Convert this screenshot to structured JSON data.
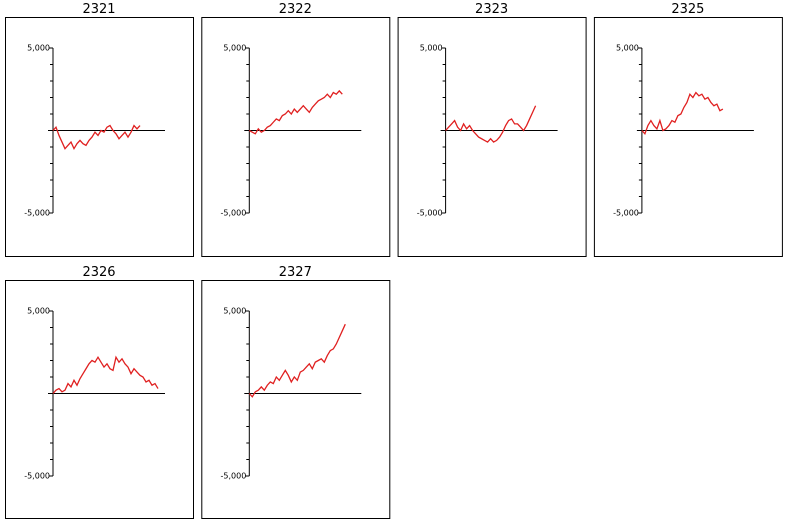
{
  "chart_data": [
    {
      "type": "line",
      "title": "2321",
      "color": "#e02020",
      "ylim": [
        -5000,
        5000
      ],
      "yticks": [
        {
          "value": 5000,
          "label": "5,000"
        },
        {
          "value": -5000,
          "label": "-5,000"
        }
      ],
      "minor_yticks": [
        4000,
        3000,
        2000,
        1000,
        0,
        -1000,
        -2000,
        -3000,
        -4000
      ],
      "values": [
        0,
        200,
        -300,
        -700,
        -1100,
        -900,
        -700,
        -1100,
        -800,
        -600,
        -800,
        -900,
        -600,
        -400,
        -100,
        -300,
        0,
        -100,
        200,
        300,
        0,
        -200,
        -500,
        -300,
        -100,
        -400,
        -100,
        300,
        100,
        300
      ]
    },
    {
      "type": "line",
      "title": "2322",
      "color": "#e02020",
      "ylim": [
        -5000,
        5000
      ],
      "yticks": [
        {
          "value": 5000,
          "label": "5,000"
        },
        {
          "value": -5000,
          "label": "-5,000"
        }
      ],
      "minor_yticks": [
        4000,
        3000,
        2000,
        1000,
        0,
        -1000,
        -2000,
        -3000,
        -4000
      ],
      "values": [
        0,
        -100,
        -200,
        100,
        -100,
        0,
        200,
        300,
        500,
        700,
        600,
        900,
        1000,
        1200,
        1000,
        1300,
        1100,
        1300,
        1500,
        1300,
        1100,
        1400,
        1600,
        1800,
        1900,
        2000,
        2200,
        2000,
        2300,
        2200,
        2400,
        2200
      ]
    },
    {
      "type": "line",
      "title": "2323",
      "color": "#e02020",
      "ylim": [
        -5000,
        5000
      ],
      "yticks": [
        {
          "value": 5000,
          "label": "5,000"
        },
        {
          "value": -5000,
          "label": "-5,000"
        }
      ],
      "minor_yticks": [
        4000,
        3000,
        2000,
        1000,
        0,
        -1000,
        -2000,
        -3000,
        -4000
      ],
      "values": [
        0,
        200,
        400,
        600,
        200,
        0,
        400,
        100,
        300,
        0,
        -200,
        -400,
        -500,
        -600,
        -700,
        -500,
        -700,
        -600,
        -400,
        -100,
        300,
        600,
        700,
        400,
        400,
        200,
        0,
        300,
        700,
        1100,
        1500
      ]
    },
    {
      "type": "line",
      "title": "2325",
      "color": "#e02020",
      "ylim": [
        -5000,
        5000
      ],
      "yticks": [
        {
          "value": 5000,
          "label": "5,000"
        },
        {
          "value": -5000,
          "label": "-5,000"
        }
      ],
      "minor_yticks": [
        4000,
        3000,
        2000,
        1000,
        0,
        -1000,
        -2000,
        -3000,
        -4000
      ],
      "values": [
        0,
        -200,
        300,
        600,
        300,
        100,
        600,
        0,
        100,
        300,
        600,
        500,
        900,
        1000,
        1400,
        1700,
        2200,
        2000,
        2300,
        2100,
        2200,
        1900,
        2000,
        1700,
        1500,
        1600,
        1200,
        1300
      ]
    },
    {
      "type": "line",
      "title": "2326",
      "color": "#e02020",
      "ylim": [
        -5000,
        5000
      ],
      "yticks": [
        {
          "value": 5000,
          "label": "5,000"
        },
        {
          "value": -5000,
          "label": "-5,000"
        }
      ],
      "minor_yticks": [
        4000,
        3000,
        2000,
        1000,
        0,
        -1000,
        -2000,
        -3000,
        -4000
      ],
      "values": [
        0,
        200,
        300,
        100,
        200,
        600,
        400,
        800,
        500,
        900,
        1200,
        1500,
        1800,
        2000,
        1900,
        2200,
        1900,
        1600,
        1800,
        1500,
        1400,
        2200,
        1900,
        2100,
        1800,
        1600,
        1200,
        1500,
        1300,
        1100,
        1000,
        700,
        800,
        500,
        600,
        300
      ]
    },
    {
      "type": "line",
      "title": "2327",
      "color": "#e02020",
      "ylim": [
        -5000,
        5000
      ],
      "yticks": [
        {
          "value": 5000,
          "label": "5,000"
        },
        {
          "value": -5000,
          "label": "-5,000"
        }
      ],
      "minor_yticks": [
        4000,
        3000,
        2000,
        1000,
        0,
        -1000,
        -2000,
        -3000,
        -4000
      ],
      "values": [
        0,
        -200,
        100,
        200,
        400,
        200,
        500,
        700,
        600,
        1000,
        800,
        1100,
        1400,
        1100,
        700,
        1000,
        800,
        1300,
        1400,
        1600,
        1800,
        1500,
        1900,
        2000,
        2100,
        1900,
        2300,
        2600,
        2700,
        3000,
        3400,
        3800,
        4200
      ]
    }
  ]
}
